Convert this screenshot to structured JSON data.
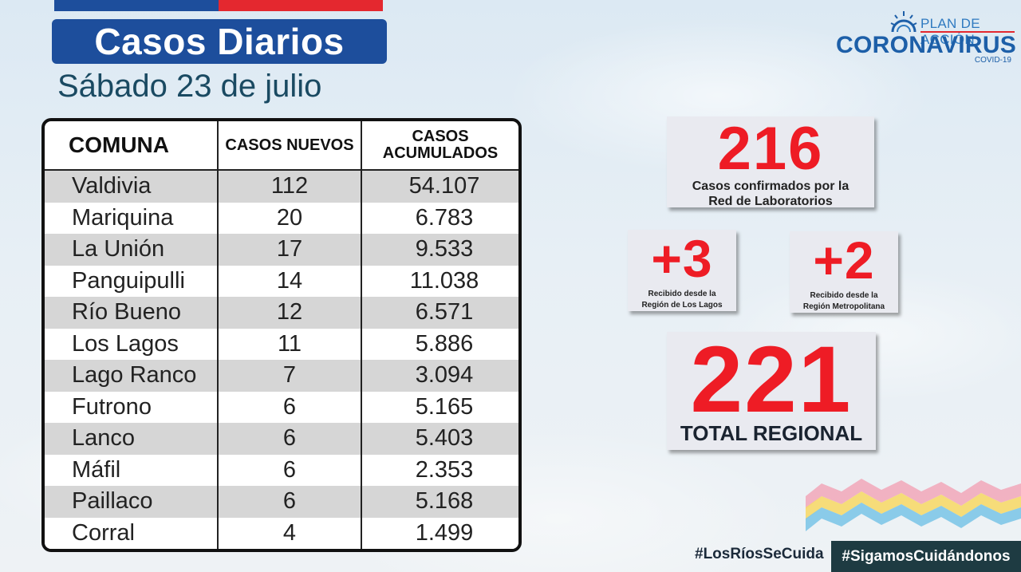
{
  "header": {
    "title": "Casos Diarios",
    "date": "Sábado 23 de julio"
  },
  "logo": {
    "top_text": "PLAN DE ACCIÓN",
    "main_text": "CORONAVIRUS",
    "sub_text": "COVID-19"
  },
  "table": {
    "headers": {
      "comuna": "COMUNA",
      "nuevos": "CASOS NUEVOS",
      "acumulados_line1": "CASOS",
      "acumulados_line2": "ACUMULADOS"
    },
    "rows": [
      {
        "comuna": "Valdivia",
        "nuevos": "112",
        "acumulados": "54.107"
      },
      {
        "comuna": "Mariquina",
        "nuevos": "20",
        "acumulados": "6.783"
      },
      {
        "comuna": "La Unión",
        "nuevos": "17",
        "acumulados": "9.533"
      },
      {
        "comuna": "Panguipulli",
        "nuevos": "14",
        "acumulados": "11.038"
      },
      {
        "comuna": "Río Bueno",
        "nuevos": "12",
        "acumulados": "6.571"
      },
      {
        "comuna": "Los Lagos",
        "nuevos": "11",
        "acumulados": "5.886"
      },
      {
        "comuna": "Lago Ranco",
        "nuevos": "7",
        "acumulados": "3.094"
      },
      {
        "comuna": "Futrono",
        "nuevos": "6",
        "acumulados": "5.165"
      },
      {
        "comuna": "Lanco",
        "nuevos": "6",
        "acumulados": "5.403"
      },
      {
        "comuna": "Máfil",
        "nuevos": "6",
        "acumulados": "2.353"
      },
      {
        "comuna": "Paillaco",
        "nuevos": "6",
        "acumulados": "5.168"
      },
      {
        "comuna": "Corral",
        "nuevos": "4",
        "acumulados": "1.499"
      }
    ]
  },
  "summary": {
    "confirmed": {
      "value": "216",
      "label_line1": "Casos confirmados  por la",
      "label_line2": "Red de Laboratorios"
    },
    "los_lagos": {
      "value": "+3",
      "label_line1": "Recibido desde la",
      "label_line2": "Región de Los Lagos"
    },
    "metropolitana": {
      "value": "+2",
      "label_line1": "Recibido desde la",
      "label_line2": "Región Metropolitana"
    },
    "total": {
      "value": "221",
      "label": "TOTAL REGIONAL"
    }
  },
  "footer": {
    "hashtag1": "#LosRíosSeCuida",
    "hashtag2": "#SigamosCuidándonos"
  },
  "colors": {
    "brand_blue": "#1d4e9c",
    "brand_red": "#e4282f",
    "number_red": "#ee1c25",
    "hashtag_bg": "#1e3b42"
  }
}
